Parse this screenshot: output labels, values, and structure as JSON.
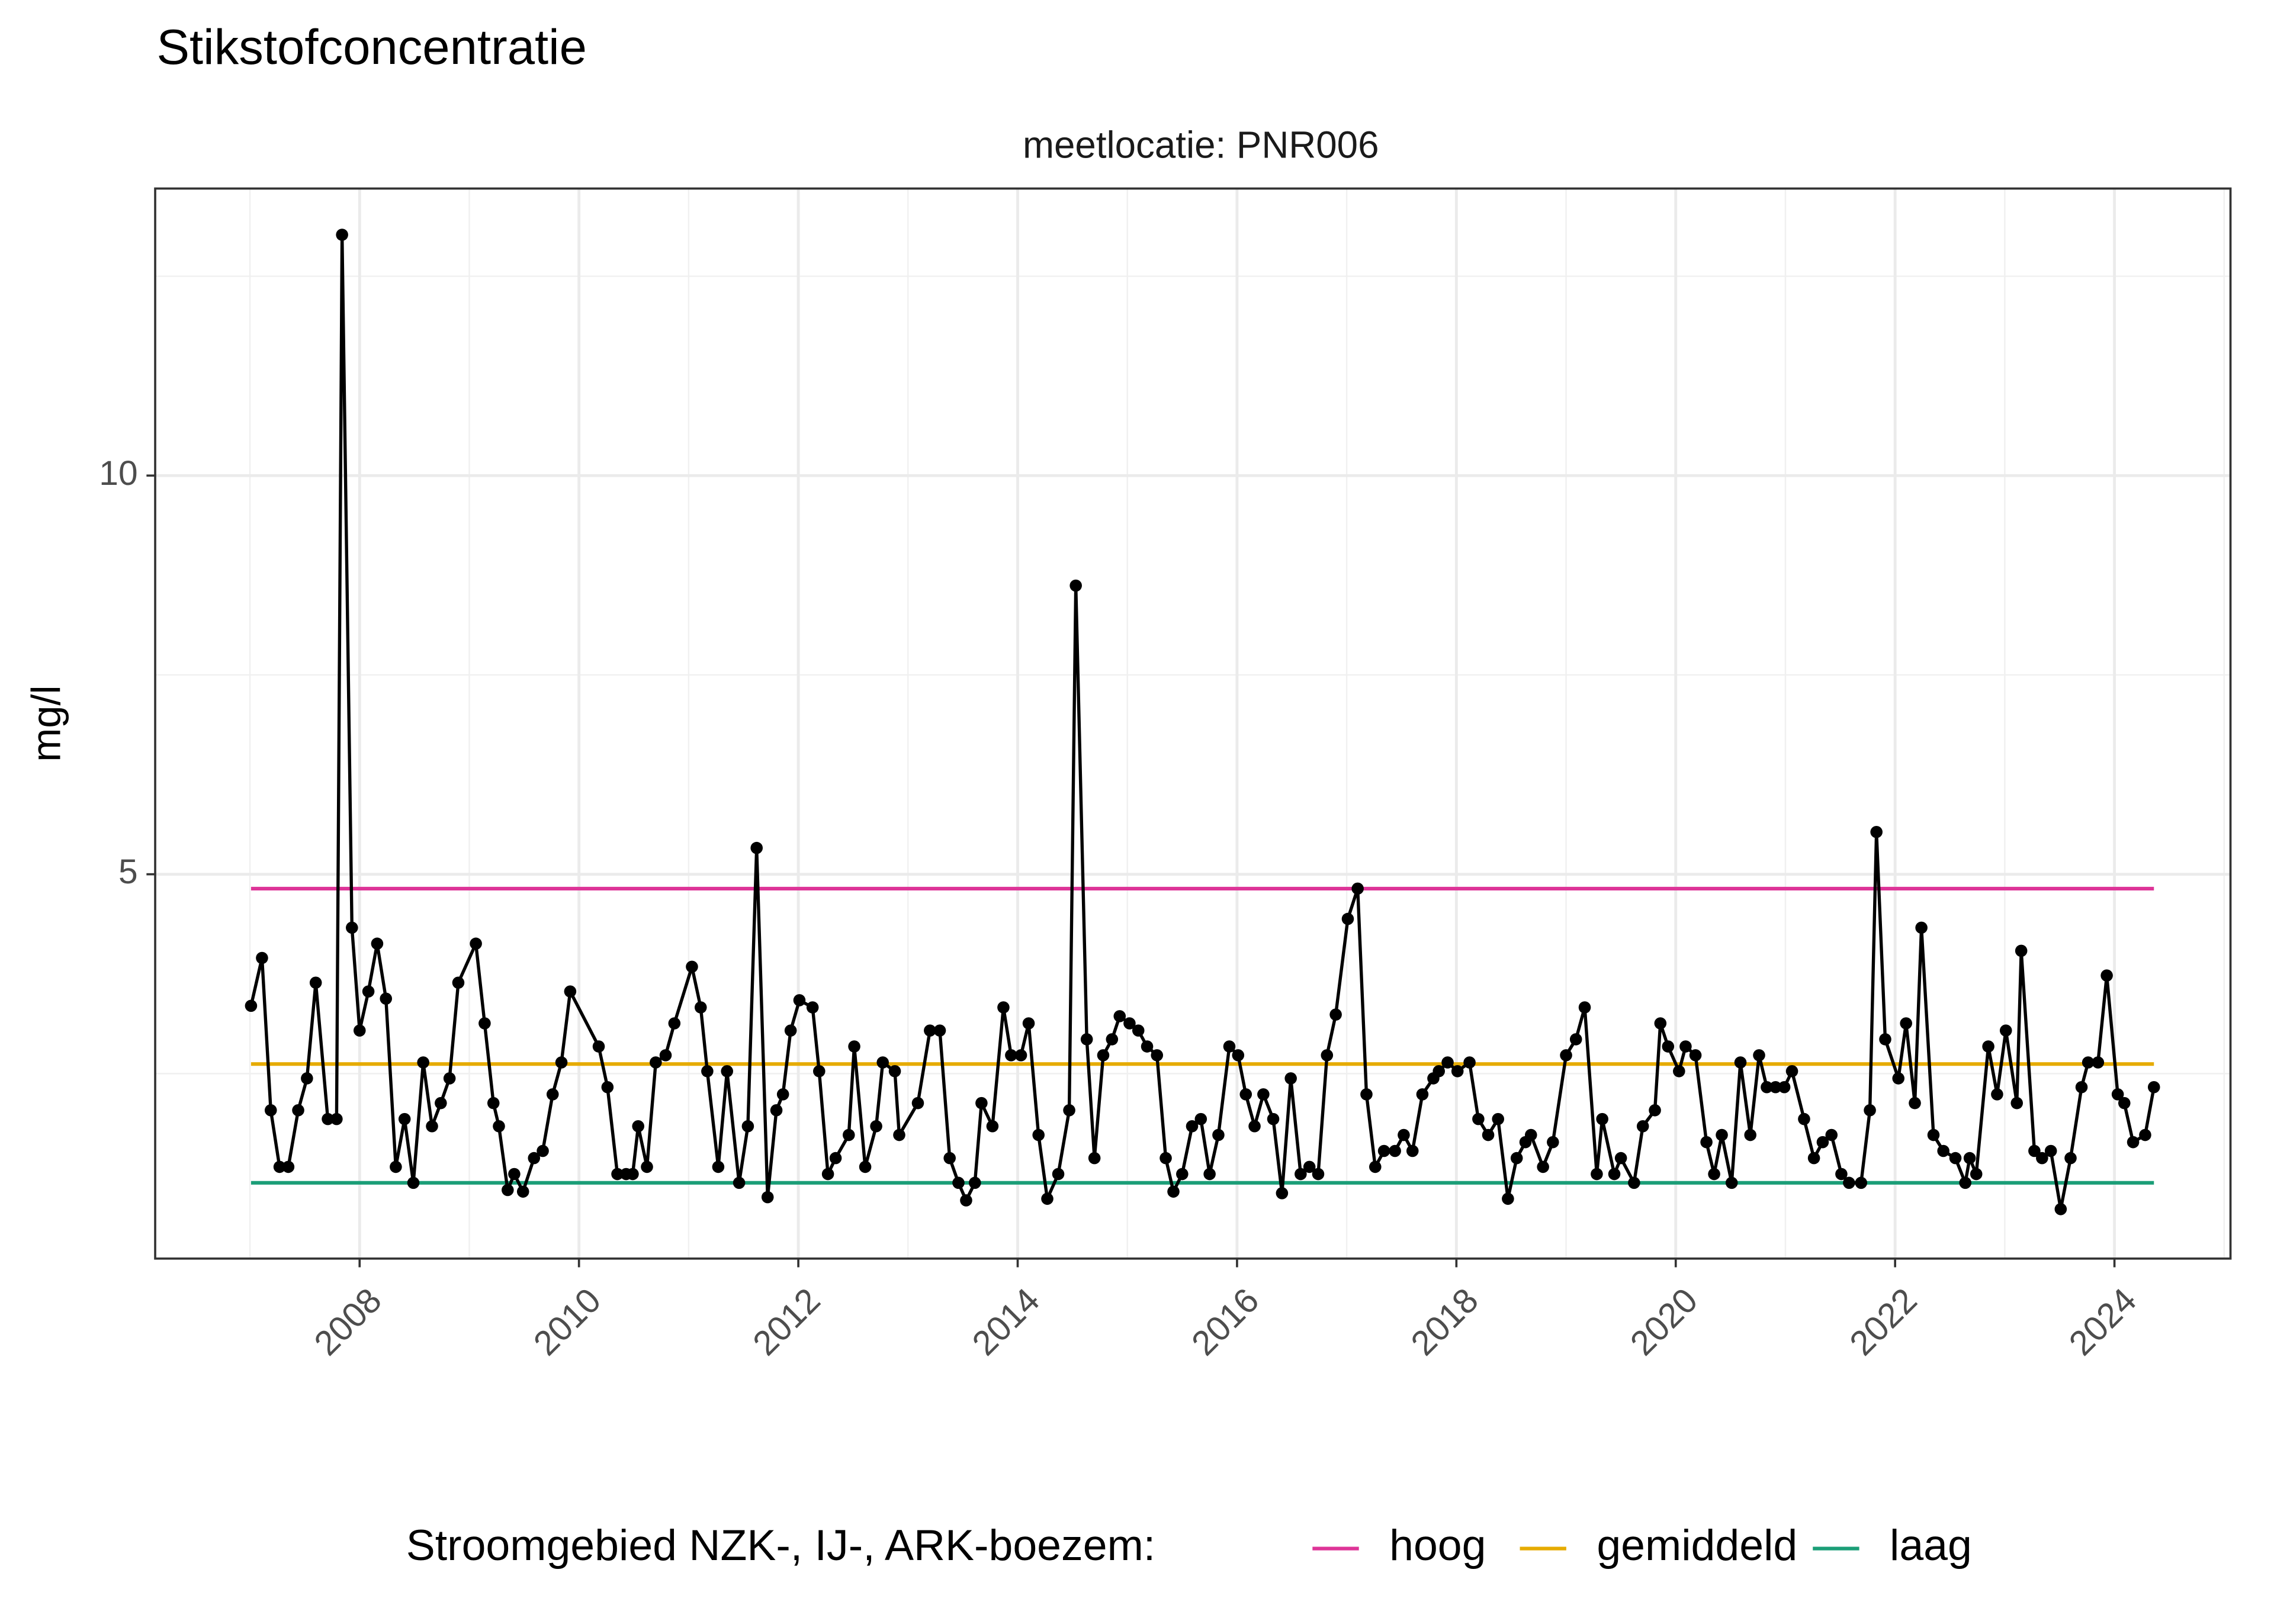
{
  "chart_data": {
    "type": "line",
    "title": "Stikstofconcentratie",
    "subtitle": "meetlocatie: PNR006",
    "ylabel": "mg/l",
    "color": "#000000",
    "x": [
      2007.01,
      2007.11,
      2007.19,
      2007.27,
      2007.35,
      2007.44,
      2007.52,
      2007.6,
      2007.71,
      2007.79,
      2007.84,
      2007.93,
      2008.0,
      2008.08,
      2008.16,
      2008.24,
      2008.33,
      2008.41,
      2008.49,
      2008.58,
      2008.66,
      2008.74,
      2008.82,
      2008.9,
      2009.06,
      2009.14,
      2009.22,
      2009.27,
      2009.35,
      2009.41,
      2009.49,
      2009.59,
      2009.67,
      2009.76,
      2009.84,
      2009.92,
      2010.18,
      2010.26,
      2010.35,
      2010.43,
      2010.49,
      2010.54,
      2010.62,
      2010.7,
      2010.79,
      2010.87,
      2011.03,
      2011.11,
      2011.17,
      2011.27,
      2011.35,
      2011.46,
      2011.54,
      2011.62,
      2011.72,
      2011.8,
      2011.86,
      2011.93,
      2012.01,
      2012.13,
      2012.19,
      2012.27,
      2012.34,
      2012.46,
      2012.51,
      2012.61,
      2012.71,
      2012.77,
      2012.88,
      2012.92,
      2013.09,
      2013.2,
      2013.29,
      2013.38,
      2013.46,
      2013.53,
      2013.61,
      2013.67,
      2013.77,
      2013.87,
      2013.94,
      2014.03,
      2014.1,
      2014.19,
      2014.27,
      2014.37,
      2014.47,
      2014.53,
      2014.63,
      2014.7,
      2014.78,
      2014.86,
      2014.93,
      2015.02,
      2015.1,
      2015.18,
      2015.27,
      2015.35,
      2015.42,
      2015.5,
      2015.59,
      2015.67,
      2015.75,
      2015.83,
      2015.93,
      2016.01,
      2016.08,
      2016.16,
      2016.24,
      2016.33,
      2016.41,
      2016.49,
      2016.58,
      2016.66,
      2016.74,
      2016.82,
      2016.9,
      2017.01,
      2017.1,
      2017.18,
      2017.26,
      2017.34,
      2017.44,
      2017.52,
      2017.6,
      2017.69,
      2017.79,
      2017.84,
      2017.92,
      2018.01,
      2018.12,
      2018.2,
      2018.29,
      2018.38,
      2018.47,
      2018.55,
      2018.63,
      2018.68,
      2018.79,
      2018.88,
      2019.0,
      2019.09,
      2019.17,
      2019.28,
      2019.33,
      2019.44,
      2019.5,
      2019.62,
      2019.7,
      2019.81,
      2019.86,
      2019.93,
      2020.03,
      2020.09,
      2020.18,
      2020.28,
      2020.35,
      2020.42,
      2020.51,
      2020.59,
      2020.68,
      2020.76,
      2020.83,
      2020.91,
      2020.99,
      2021.06,
      2021.17,
      2021.26,
      2021.34,
      2021.42,
      2021.51,
      2021.58,
      2021.69,
      2021.77,
      2021.83,
      2021.91,
      2022.03,
      2022.1,
      2022.18,
      2022.24,
      2022.35,
      2022.44,
      2022.55,
      2022.64,
      2022.68,
      2022.74,
      2022.85,
      2022.93,
      2023.01,
      2023.11,
      2023.15,
      2023.27,
      2023.34,
      2023.42,
      2023.51,
      2023.6,
      2023.7,
      2023.76,
      2023.85,
      2023.93,
      2024.03,
      2024.09,
      2024.17,
      2024.28,
      2024.36
    ],
    "values": [
      3.35,
      3.95,
      2.04,
      1.33,
      1.33,
      2.04,
      2.44,
      3.64,
      1.93,
      1.93,
      13.02,
      4.33,
      3.04,
      3.53,
      4.13,
      3.44,
      1.33,
      1.93,
      1.13,
      2.64,
      1.84,
      2.13,
      2.44,
      3.64,
      4.13,
      3.13,
      2.13,
      1.84,
      1.04,
      1.24,
      1.02,
      1.44,
      1.53,
      2.24,
      2.64,
      3.53,
      2.84,
      2.33,
      1.24,
      1.24,
      1.24,
      1.84,
      1.33,
      2.64,
      2.73,
      3.13,
      3.84,
      3.33,
      2.53,
      1.33,
      2.53,
      1.13,
      1.84,
      5.33,
      0.95,
      2.04,
      2.24,
      3.04,
      3.42,
      3.33,
      2.53,
      1.24,
      1.44,
      1.73,
      2.84,
      1.33,
      1.84,
      2.64,
      2.53,
      1.73,
      2.13,
      3.04,
      3.04,
      1.44,
      1.13,
      0.91,
      1.13,
      2.13,
      1.84,
      3.33,
      2.73,
      2.73,
      3.13,
      1.73,
      0.93,
      1.24,
      2.04,
      8.62,
      2.93,
      1.44,
      2.73,
      2.93,
      3.22,
      3.13,
      3.04,
      2.84,
      2.73,
      1.44,
      1.02,
      1.24,
      1.84,
      1.93,
      1.24,
      1.73,
      2.84,
      2.73,
      2.24,
      1.84,
      2.24,
      1.93,
      1.0,
      2.44,
      1.24,
      1.33,
      1.24,
      2.73,
      3.24,
      4.44,
      4.82,
      2.24,
      1.33,
      1.53,
      1.53,
      1.73,
      1.53,
      2.24,
      2.44,
      2.53,
      2.64,
      2.53,
      2.64,
      1.93,
      1.73,
      1.93,
      0.93,
      1.44,
      1.64,
      1.73,
      1.33,
      1.64,
      2.73,
      2.93,
      3.33,
      1.24,
      1.93,
      1.24,
      1.44,
      1.13,
      1.84,
      2.04,
      3.13,
      2.84,
      2.53,
      2.84,
      2.73,
      1.64,
      1.24,
      1.73,
      1.13,
      2.64,
      1.73,
      2.73,
      2.33,
      2.33,
      2.33,
      2.53,
      1.93,
      1.44,
      1.64,
      1.73,
      1.24,
      1.13,
      1.13,
      2.04,
      5.53,
      2.93,
      2.44,
      3.13,
      2.13,
      4.33,
      1.73,
      1.53,
      1.44,
      1.13,
      1.44,
      1.24,
      2.84,
      2.24,
      3.04,
      2.13,
      4.04,
      1.53,
      1.44,
      1.53,
      0.8,
      1.44,
      2.33,
      2.64,
      2.64,
      3.73,
      2.24,
      2.13,
      1.64,
      1.73,
      2.33
    ],
    "xlim": [
      2006.136,
      2025.058
    ],
    "ylim": [
      0.18,
      13.6
    ],
    "xticks": [
      2008,
      2010,
      2012,
      2014,
      2016,
      2018,
      2020,
      2022,
      2024
    ],
    "yticks": [
      5,
      10
    ],
    "xminor": [
      2007,
      2009,
      2011,
      2013,
      2015,
      2017,
      2019,
      2021,
      2023,
      2025
    ],
    "yminor": [
      2.5,
      7.5,
      12.5
    ],
    "grid": true,
    "legend_title": "Stroomgebied NZK-, IJ-, ARK-boezem:",
    "legend_position": "bottom",
    "reference_lines": [
      {
        "name": "hoog",
        "color": "#dd3497",
        "value": 4.82
      },
      {
        "name": "gemiddeld",
        "color": "#e6ab02",
        "value": 2.62
      },
      {
        "name": "laag",
        "color": "#1b9e77",
        "value": 1.13
      }
    ]
  }
}
